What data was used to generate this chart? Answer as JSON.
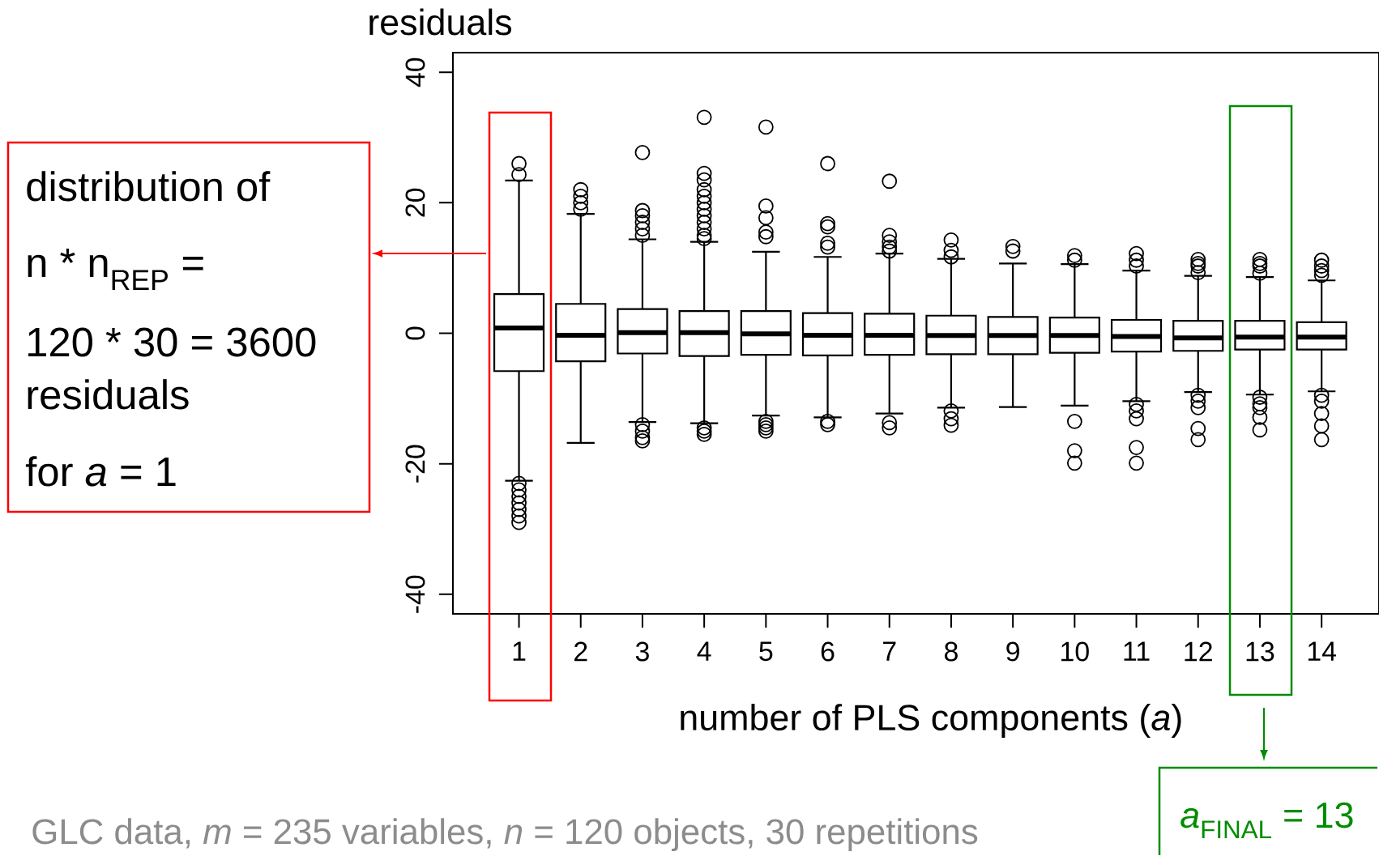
{
  "chart_data": {
    "type": "box",
    "categories": [
      "1",
      "2",
      "3",
      "4",
      "5",
      "6",
      "7",
      "8",
      "9",
      "10",
      "11",
      "12",
      "13",
      "14"
    ],
    "boxes": [
      {
        "low": -22.6,
        "q1": -5.8,
        "median": 0.8,
        "q3": 6.0,
        "high": 23.4,
        "outliers": [
          26,
          24.3,
          -23,
          -24,
          -25,
          -26,
          -27,
          -28,
          -29
        ]
      },
      {
        "low": -16.8,
        "q1": -4.3,
        "median": -0.3,
        "q3": 4.5,
        "high": 18.3,
        "outliers": [
          19,
          20,
          21,
          22
        ]
      },
      {
        "low": -13.6,
        "q1": -3.1,
        "median": 0.1,
        "q3": 3.7,
        "high": 14.4,
        "outliers": [
          27.7,
          18.8,
          18,
          17,
          16,
          15,
          -14,
          -15,
          -16,
          -16.5
        ]
      },
      {
        "low": -13.8,
        "q1": -3.5,
        "median": 0.1,
        "q3": 3.4,
        "high": 14.0,
        "outliers": [
          33.1,
          24.5,
          23.5,
          22,
          21,
          20,
          19,
          18,
          17,
          16,
          15,
          14.5,
          -14.5,
          -15,
          -15.5
        ]
      },
      {
        "low": -12.6,
        "q1": -3.3,
        "median": -0.1,
        "q3": 3.4,
        "high": 12.5,
        "outliers": [
          31.6,
          19.5,
          17.7,
          15.5,
          14.8,
          -13.5,
          -14,
          -14.5,
          -15
        ]
      },
      {
        "low": -12.9,
        "q1": -3.4,
        "median": -0.3,
        "q3": 3.1,
        "high": 11.7,
        "outliers": [
          26,
          16.8,
          16.3,
          13.8,
          13.2,
          -13.5,
          -14
        ]
      },
      {
        "low": -12.3,
        "q1": -3.3,
        "median": -0.3,
        "q3": 3.0,
        "high": 12.2,
        "outliers": [
          23.3,
          15,
          14,
          13.2,
          12.6,
          -13.7,
          -14.5
        ]
      },
      {
        "low": -11.4,
        "q1": -3.2,
        "median": -0.35,
        "q3": 2.7,
        "high": 11.4,
        "outliers": [
          14.3,
          12.7,
          11.7,
          -11.9,
          -13.1,
          -14.1
        ]
      },
      {
        "low": -11.3,
        "q1": -3.2,
        "median": -0.35,
        "q3": 2.5,
        "high": 10.7,
        "outliers": [
          13.3,
          12.6
        ]
      },
      {
        "low": -11.1,
        "q1": -3.0,
        "median": -0.35,
        "q3": 2.4,
        "high": 10.6,
        "outliers": [
          11.9,
          11.2,
          -13.5,
          -18.0,
          -19.9
        ]
      },
      {
        "low": -10.4,
        "q1": -2.8,
        "median": -0.5,
        "q3": 2.05,
        "high": 9.6,
        "outliers": [
          12.2,
          11.2,
          10.3,
          -10.9,
          -11.9,
          -13.1,
          -17.5,
          -19.9
        ]
      },
      {
        "low": -9.0,
        "q1": -2.7,
        "median": -0.7,
        "q3": 1.9,
        "high": 8.8,
        "outliers": [
          11.3,
          10.7,
          10.3,
          9.3,
          -9.5,
          -10.4,
          -11.4,
          -14.6,
          -16.3
        ]
      },
      {
        "low": -9.4,
        "q1": -2.5,
        "median": -0.6,
        "q3": 1.9,
        "high": 8.6,
        "outliers": [
          11.3,
          10.7,
          10.3,
          9.2,
          -9.8,
          -10.8,
          -11.4,
          -12.9,
          -14.8
        ]
      },
      {
        "low": -8.9,
        "q1": -2.5,
        "median": -0.6,
        "q3": 1.7,
        "high": 8.1,
        "outliers": [
          11.2,
          10.3,
          9.6,
          8.9,
          -9.5,
          -10.4,
          -12.3,
          -14.2,
          -16.3
        ]
      }
    ],
    "xlabel": "number of PLS components (*a*)",
    "ylabel": "residuals",
    "ylim": [
      -43,
      43
    ],
    "yticks": [
      -40,
      -20,
      0,
      20,
      40
    ],
    "annotations": [
      "distribution of",
      "n * n$_{REP}$ =",
      "120 * 30 = 3600",
      "residuals",
      "for *a* = 1",
      "*a*$_{FINAL}$ = 13",
      "GLC data, *m* = 235 variables, *n* = 120 objects, 30 repetitions"
    ]
  }
}
